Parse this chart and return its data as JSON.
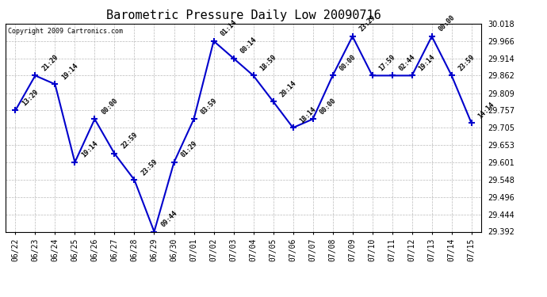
{
  "title": "Barometric Pressure Daily Low 20090716",
  "copyright": "Copyright 2009 Cartronics.com",
  "line_color": "#0000cc",
  "marker_color": "#0000cc",
  "background_color": "#ffffff",
  "grid_color": "#bbbbbb",
  "x_labels": [
    "06/22",
    "06/23",
    "06/24",
    "06/25",
    "06/26",
    "06/27",
    "06/28",
    "06/29",
    "06/30",
    "07/01",
    "07/02",
    "07/03",
    "07/04",
    "07/05",
    "07/06",
    "07/07",
    "07/08",
    "07/09",
    "07/10",
    "07/11",
    "07/12",
    "07/13",
    "07/14",
    "07/15"
  ],
  "y_values": [
    29.757,
    29.862,
    29.836,
    29.601,
    29.731,
    29.627,
    29.548,
    29.392,
    29.601,
    29.731,
    29.966,
    29.914,
    29.862,
    29.784,
    29.705,
    29.731,
    29.862,
    29.98,
    29.862,
    29.862,
    29.862,
    29.98,
    29.862,
    29.719
  ],
  "time_labels": [
    "13:29",
    "21:29",
    "19:14",
    "19:14",
    "00:00",
    "22:59",
    "23:59",
    "09:44",
    "01:29",
    "03:59",
    "01:14",
    "00:14",
    "18:59",
    "20:14",
    "18:14",
    "00:00",
    "00:00",
    "23:29",
    "17:59",
    "02:44",
    "19:14",
    "00:00",
    "23:59",
    "14:14"
  ],
  "ylim": [
    29.392,
    30.018
  ],
  "yticks": [
    29.392,
    29.444,
    29.496,
    29.548,
    29.601,
    29.653,
    29.705,
    29.757,
    29.809,
    29.862,
    29.914,
    29.966,
    30.018
  ]
}
